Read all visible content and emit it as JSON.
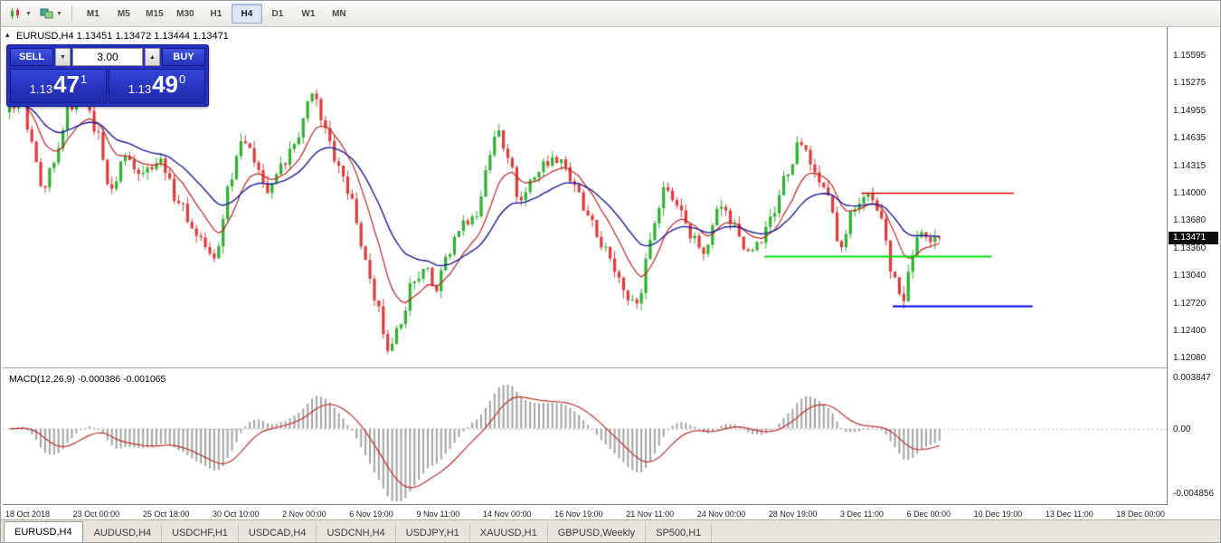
{
  "toolbar": {
    "icons": [
      {
        "name": "chart-type-icon"
      },
      {
        "name": "indicators-icon"
      }
    ],
    "timeframes": [
      "M1",
      "M5",
      "M15",
      "M30",
      "H1",
      "H4",
      "D1",
      "W1",
      "MN"
    ],
    "active_timeframe": "H4"
  },
  "chart": {
    "title": "EURUSD,H4 1.13451 1.13472 1.13444 1.13471",
    "collapse_arrow": "▴"
  },
  "one_click": {
    "sell_label": "SELL",
    "buy_label": "BUY",
    "volume": "3.00",
    "vol_down_glyph": "▼",
    "vol_up_glyph": "▲",
    "bid": {
      "prefix": "1.13",
      "pips": "47",
      "frac": "1"
    },
    "ask": {
      "prefix": "1.13",
      "pips": "49",
      "frac": "0"
    }
  },
  "price_scale": {
    "labels": [
      "1.15595",
      "1.15275",
      "1.14955",
      "1.14635",
      "1.14315",
      "1.14000",
      "1.13680",
      "1.13360",
      "1.13040",
      "1.12720",
      "1.12400",
      "1.12080"
    ],
    "current": "1.13471"
  },
  "macd_panel": {
    "label": "MACD(12,26,9) -0.000386 -0.001065",
    "scale_top": "0.003847",
    "scale_zero": "0.00",
    "scale_bottom": "-0.004856"
  },
  "time_axis": {
    "labels": [
      "18 Oct 2018",
      "23 Oct 00:00",
      "25 Oct 18:00",
      "30 Oct 10:00",
      "2 Nov 00:00",
      "6 Nov 19:00",
      "9 Nov 11:00",
      "14 Nov 00:00",
      "16 Nov 19:00",
      "21 Nov 11:00",
      "24 Nov 00:00",
      "28 Nov 19:00",
      "3 Dec 11:00",
      "6 Dec 00:00",
      "10 Dec 19:00",
      "13 Dec 11:00",
      "18 Dec 00:00"
    ]
  },
  "tabs": {
    "items": [
      "EURUSD,H4",
      "AUDUSD,H4",
      "USDCHF,H1",
      "USDCAD,H4",
      "USDCNH,H4",
      "USDJPY,H1",
      "XAUUSD,H1",
      "GBPUSD,Weekly",
      "SP500,H1"
    ],
    "active": "EURUSD,H4"
  },
  "colors": {
    "candle_up": "#2fb12f",
    "candle_down": "#de3b3b",
    "ma_fast": "#c42222",
    "ma_slow": "#1c1c9e",
    "macd_hist": "#a3a3a3",
    "macd_signal": "#c03030",
    "accent_blue_panel": "#2430c0"
  },
  "chart_data": {
    "type": "candlestick",
    "symbol": "EURUSD",
    "timeframe": "H4",
    "current_bid": 1.13471,
    "current_ask": 1.1349,
    "ohlc_current": {
      "open": 1.13451,
      "high": 1.13472,
      "low": 1.13444,
      "close": 1.13471
    },
    "num_candles": 210,
    "candle_area": {
      "x_start_frac": 0.004,
      "x_end_frac": 0.806
    },
    "y_axis": {
      "min": 1.1198,
      "max": 1.1593
    },
    "price_anchors": [
      [
        0.0,
        1.1497
      ],
      [
        0.012,
        1.1512
      ],
      [
        0.021,
        1.1465
      ],
      [
        0.036,
        1.1398
      ],
      [
        0.046,
        1.143
      ],
      [
        0.065,
        1.15
      ],
      [
        0.079,
        1.1507
      ],
      [
        0.094,
        1.147
      ],
      [
        0.109,
        1.14
      ],
      [
        0.123,
        1.1442
      ],
      [
        0.142,
        1.1425
      ],
      [
        0.162,
        1.1437
      ],
      [
        0.181,
        1.139
      ],
      [
        0.201,
        1.1352
      ],
      [
        0.22,
        1.1322
      ],
      [
        0.239,
        1.142
      ],
      [
        0.249,
        1.1465
      ],
      [
        0.264,
        1.1438
      ],
      [
        0.278,
        1.14
      ],
      [
        0.293,
        1.1432
      ],
      [
        0.307,
        1.1455
      ],
      [
        0.327,
        1.152
      ],
      [
        0.336,
        1.1478
      ],
      [
        0.351,
        1.144
      ],
      [
        0.365,
        1.14
      ],
      [
        0.38,
        1.133
      ],
      [
        0.394,
        1.1268
      ],
      [
        0.409,
        1.1218
      ],
      [
        0.419,
        1.1242
      ],
      [
        0.433,
        1.1296
      ],
      [
        0.448,
        1.131
      ],
      [
        0.457,
        1.1286
      ],
      [
        0.472,
        1.133
      ],
      [
        0.487,
        1.1365
      ],
      [
        0.501,
        1.1372
      ],
      [
        0.516,
        1.144
      ],
      [
        0.525,
        1.1476
      ],
      [
        0.535,
        1.1445
      ],
      [
        0.549,
        1.139
      ],
      [
        0.564,
        1.142
      ],
      [
        0.578,
        1.1436
      ],
      [
        0.593,
        1.144
      ],
      [
        0.608,
        1.1405
      ],
      [
        0.622,
        1.137
      ],
      [
        0.637,
        1.134
      ],
      [
        0.651,
        1.131
      ],
      [
        0.666,
        1.128
      ],
      [
        0.675,
        1.1268
      ],
      [
        0.69,
        1.135
      ],
      [
        0.704,
        1.1406
      ],
      [
        0.719,
        1.1386
      ],
      [
        0.734,
        1.135
      ],
      [
        0.748,
        1.133
      ],
      [
        0.763,
        1.139
      ],
      [
        0.777,
        1.1365
      ],
      [
        0.792,
        1.1336
      ],
      [
        0.806,
        1.134
      ],
      [
        0.821,
        1.1376
      ],
      [
        0.835,
        1.142
      ],
      [
        0.85,
        1.1458
      ],
      [
        0.864,
        1.143
      ],
      [
        0.879,
        1.14
      ],
      [
        0.893,
        1.1336
      ],
      [
        0.908,
        1.138
      ],
      [
        0.922,
        1.1396
      ],
      [
        0.937,
        1.137
      ],
      [
        0.951,
        1.13
      ],
      [
        0.961,
        1.1272
      ],
      [
        0.971,
        1.133
      ],
      [
        0.981,
        1.1356
      ],
      [
        0.99,
        1.134
      ],
      [
        1.0,
        1.1347
      ]
    ],
    "noise": {
      "close": 0.0011,
      "wick": 0.0009
    },
    "overlays": {
      "ma_fast_period": 10,
      "ma_slow_period": 24
    },
    "hlines": [
      {
        "price": 1.14,
        "x_from": 0.737,
        "x_to": 0.868,
        "color": "#dd0000",
        "width": 1.5
      },
      {
        "price": 1.1326,
        "x_from": 0.654,
        "x_to": 0.849,
        "color": "#00dd00",
        "width": 2
      },
      {
        "price": 1.1268,
        "x_from": 0.764,
        "x_to": 0.884,
        "color": "#0000dd",
        "width": 2
      }
    ],
    "macd": {
      "fast": 12,
      "slow": 26,
      "signal": 9,
      "y_max": 0.003847,
      "y_min": -0.004856,
      "current": -0.000386,
      "current_signal": -0.001065
    }
  }
}
